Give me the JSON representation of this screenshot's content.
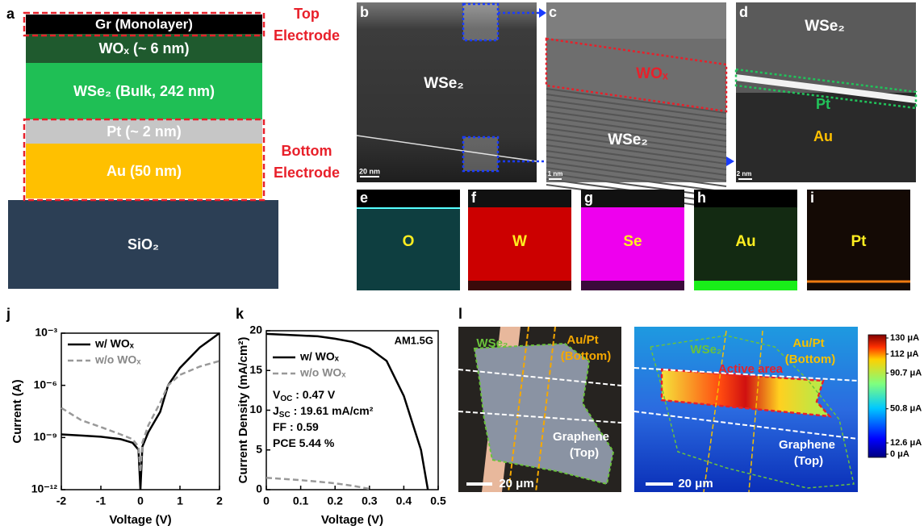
{
  "panel_labels": [
    "a",
    "b",
    "c",
    "d",
    "e",
    "f",
    "g",
    "h",
    "i",
    "j",
    "k",
    "l"
  ],
  "stack": {
    "layers": [
      "Gr (Monolayer)",
      "WOₓ (~ 6 nm)",
      "WSe₂ (Bulk, 242 nm)",
      "Pt (~ 2 nm)",
      "Au (50 nm)",
      "SiO₂"
    ],
    "top_electrode": [
      "Top",
      "Electrode"
    ],
    "bottom_electrode": [
      "Bottom",
      "Electrode"
    ]
  },
  "tem": {
    "b": {
      "labels": [
        "WSe₂"
      ],
      "scale": "20 nm"
    },
    "c": {
      "labels": [
        "WOₓ",
        "WSe₂"
      ],
      "scale": "1 nm"
    },
    "d": {
      "labels": [
        "WSe₂",
        "Pt",
        "Au"
      ],
      "scale": "2 nm"
    }
  },
  "eds": [
    "O",
    "W",
    "Se",
    "Au",
    "Pt"
  ],
  "chart_data": [
    {
      "type": "line",
      "xlabel": "Voltage (V)",
      "ylabel": "Current (A)",
      "log_y": true,
      "legend": "upper left",
      "x": [
        -2,
        -1.5,
        -1,
        -0.5,
        -0.2,
        -0.05,
        0,
        0.05,
        0.2,
        0.5,
        0.7,
        1,
        1.5,
        2
      ],
      "xlim": [
        -2,
        2
      ],
      "xticks": [
        -2,
        -1,
        0,
        1,
        2
      ],
      "ylim": [
        1e-12,
        0.001
      ],
      "yticks": [
        {
          "value": 1e-12,
          "label": "10⁻¹²"
        },
        {
          "value": 1e-09,
          "label": "10⁻⁹"
        },
        {
          "value": 1e-06,
          "label": "10⁻⁶"
        },
        {
          "value": 0.001,
          "label": "10⁻³"
        }
      ],
      "series": [
        {
          "name": "w/ WOₓ",
          "color": "#000000",
          "dash": false,
          "values": [
            1.5e-09,
            1.3e-09,
            1.1e-09,
            8e-10,
            5e-10,
            2e-10,
            1e-12,
            3e-10,
            2e-09,
            3e-08,
            1e-06,
            1e-05,
            0.00015,
            0.001
          ]
        },
        {
          "name": "w/o WOₓ",
          "color": "#999999",
          "dash": true,
          "values": [
            5e-08,
            1e-08,
            4e-09,
            1.5e-09,
            8e-10,
            3e-10,
            1e-11,
            5e-10,
            5e-09,
            1e-07,
            1e-06,
            4e-06,
            1.2e-05,
            2.5e-05
          ]
        }
      ]
    },
    {
      "type": "line",
      "xlabel": "Voltage (V)",
      "ylabel": "Current Density (mA/cm²)",
      "log_y": false,
      "legend": "upper left",
      "x": [
        0,
        0.05,
        0.1,
        0.15,
        0.2,
        0.25,
        0.3,
        0.35,
        0.4,
        0.45,
        0.47
      ],
      "xlim": [
        0,
        0.5
      ],
      "xticks": [
        0,
        0.1,
        0.2,
        0.3,
        0.4,
        0.5
      ],
      "ylim": [
        0,
        20
      ],
      "yticks": [
        0,
        5,
        10,
        15,
        20
      ],
      "corner_label": "AM1.5G",
      "annotations": [
        {
          "text": "V",
          "sub": "OC",
          "rest": " : 0.47 V"
        },
        {
          "text": "J",
          "sub": "SC",
          "rest": " : 19.61 mA/cm²"
        },
        {
          "text": "FF : 0.59"
        },
        {
          "text": "PCE 5.44 %"
        }
      ],
      "series": [
        {
          "name": "w/ WOₓ",
          "color": "#000000",
          "dash": false,
          "values": [
            19.6,
            19.5,
            19.4,
            19.3,
            19.0,
            18.6,
            17.8,
            16.2,
            11.8,
            5.0,
            0
          ]
        },
        {
          "name": "w/o WOₓ",
          "color": "#999999",
          "dash": true,
          "values": [
            1.5,
            1.35,
            1.2,
            1.0,
            0.8,
            0.5,
            0.1,
            null,
            null,
            null,
            null
          ]
        }
      ]
    }
  ],
  "maps": {
    "optical": {
      "wse2": "WSe₂",
      "electrode": [
        "Au/Pt",
        "(Bottom)"
      ],
      "graphene": [
        "Graphene",
        "(Top)"
      ],
      "scale": "20 μm"
    },
    "photocurrent": {
      "wse2": "WSe₂",
      "electrode": [
        "Au/Pt",
        "(Bottom)"
      ],
      "active": "Active area",
      "graphene": [
        "Graphene",
        "(Top)"
      ],
      "scale": "20 μm"
    },
    "colorbar": {
      "clim": [
        0,
        130
      ],
      "ticks": [
        {
          "value": 130,
          "label": "130 μA"
        },
        {
          "value": 112,
          "label": "112 μA"
        },
        {
          "value": 90.7,
          "label": "90.7 μA"
        },
        {
          "value": 50.8,
          "label": "50.8 μA"
        },
        {
          "value": 12.6,
          "label": "12.6 μA"
        },
        {
          "value": 0,
          "label": "0 μA"
        }
      ]
    }
  }
}
